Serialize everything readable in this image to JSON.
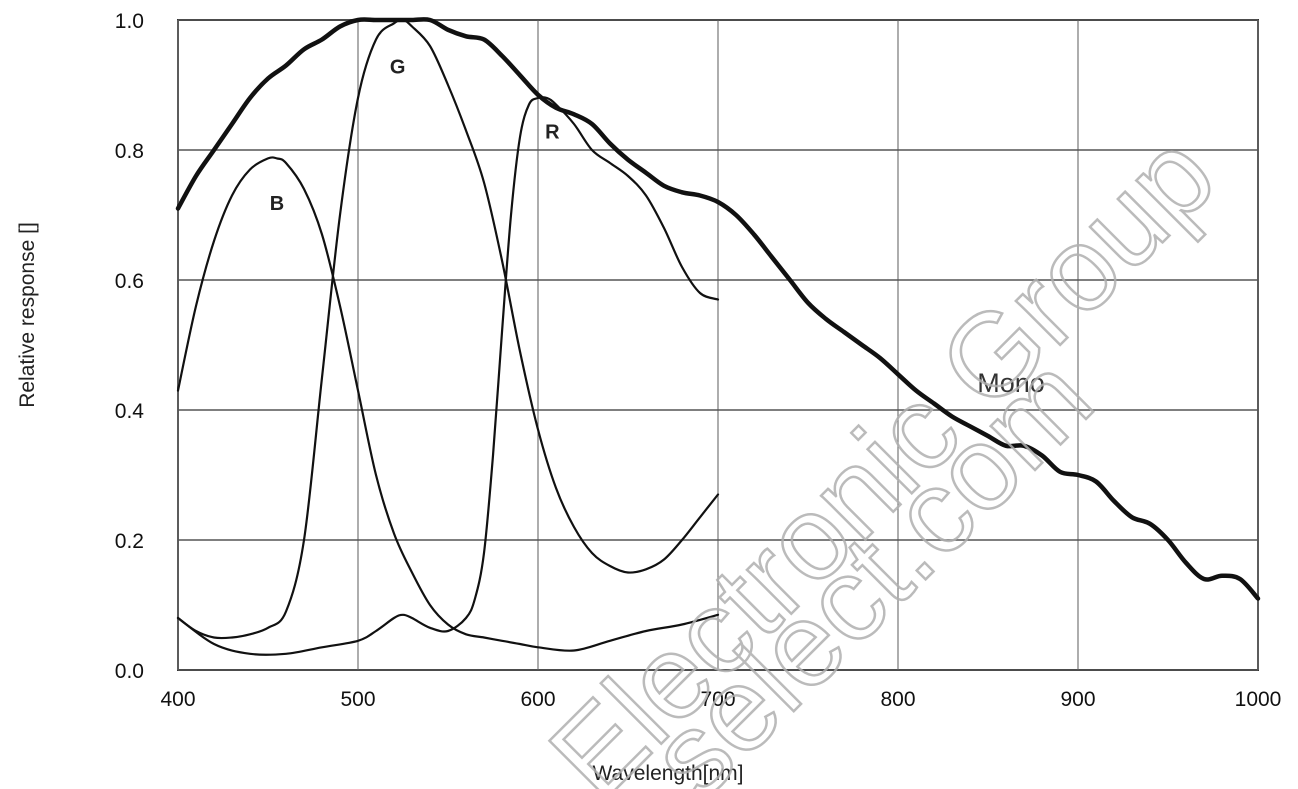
{
  "chart_data": {
    "type": "line",
    "xlabel": "Wavelength[nm]",
    "ylabel": "Relative response []",
    "xlim": [
      400,
      1000
    ],
    "ylim": [
      0.0,
      1.0
    ],
    "x_ticks": [
      "400",
      "500",
      "600",
      "700",
      "800",
      "900",
      "1000"
    ],
    "y_ticks": [
      "0.0",
      "0.2",
      "0.4",
      "0.6",
      "0.8",
      "1.0"
    ],
    "grid": true,
    "legend": "none",
    "series": [
      {
        "name": "Mono",
        "label_at": [
          860,
          0.44
        ],
        "x": [
          400,
          410,
          420,
          430,
          440,
          450,
          460,
          470,
          480,
          490,
          500,
          510,
          520,
          530,
          540,
          550,
          560,
          570,
          580,
          590,
          600,
          610,
          620,
          630,
          640,
          650,
          660,
          670,
          680,
          690,
          700,
          710,
          720,
          730,
          740,
          750,
          760,
          770,
          780,
          790,
          800,
          810,
          820,
          830,
          840,
          850,
          860,
          870,
          880,
          890,
          900,
          910,
          920,
          930,
          940,
          950,
          960,
          970,
          980,
          990,
          1000
        ],
        "y": [
          0.71,
          0.76,
          0.8,
          0.84,
          0.88,
          0.91,
          0.93,
          0.955,
          0.97,
          0.99,
          1.0,
          1.0,
          1.0,
          1.0,
          1.0,
          0.985,
          0.975,
          0.97,
          0.945,
          0.915,
          0.885,
          0.865,
          0.855,
          0.84,
          0.81,
          0.785,
          0.765,
          0.745,
          0.735,
          0.73,
          0.72,
          0.7,
          0.67,
          0.635,
          0.6,
          0.565,
          0.54,
          0.52,
          0.5,
          0.48,
          0.455,
          0.43,
          0.41,
          0.39,
          0.375,
          0.36,
          0.345,
          0.345,
          0.33,
          0.305,
          0.3,
          0.29,
          0.26,
          0.235,
          0.225,
          0.2,
          0.165,
          0.14,
          0.145,
          0.14,
          0.11
        ]
      },
      {
        "name": "B",
        "label_at": [
          455,
          0.72
        ],
        "x": [
          400,
          410,
          420,
          430,
          440,
          450,
          455,
          460,
          470,
          480,
          490,
          500,
          510,
          520,
          530,
          540,
          550,
          560,
          570,
          580,
          590,
          600,
          620,
          640,
          660,
          680,
          700
        ],
        "y": [
          0.43,
          0.56,
          0.66,
          0.73,
          0.77,
          0.787,
          0.787,
          0.78,
          0.74,
          0.67,
          0.56,
          0.43,
          0.3,
          0.21,
          0.15,
          0.1,
          0.07,
          0.055,
          0.05,
          0.045,
          0.04,
          0.035,
          0.03,
          0.045,
          0.06,
          0.07,
          0.085
        ]
      },
      {
        "name": "G",
        "label_at": [
          522,
          0.93
        ],
        "x": [
          400,
          410,
          420,
          430,
          440,
          450,
          460,
          470,
          480,
          490,
          500,
          510,
          520,
          525,
          530,
          540,
          550,
          560,
          570,
          580,
          590,
          600,
          610,
          620,
          630,
          640,
          650,
          660,
          670,
          680,
          690,
          700
        ],
        "y": [
          0.08,
          0.06,
          0.05,
          0.05,
          0.055,
          0.065,
          0.09,
          0.2,
          0.45,
          0.7,
          0.88,
          0.97,
          0.995,
          1.0,
          0.99,
          0.96,
          0.9,
          0.83,
          0.75,
          0.63,
          0.49,
          0.37,
          0.28,
          0.22,
          0.18,
          0.16,
          0.15,
          0.155,
          0.17,
          0.2,
          0.235,
          0.27
        ]
      },
      {
        "name": "R",
        "label_at": [
          608,
          0.83
        ],
        "x": [
          400,
          420,
          440,
          460,
          480,
          500,
          510,
          520,
          525,
          530,
          540,
          550,
          560,
          565,
          570,
          575,
          580,
          585,
          590,
          595,
          600,
          605,
          610,
          620,
          630,
          640,
          650,
          660,
          670,
          680,
          690,
          700
        ],
        "y": [
          0.08,
          0.04,
          0.025,
          0.025,
          0.035,
          0.045,
          0.06,
          0.08,
          0.085,
          0.08,
          0.065,
          0.06,
          0.08,
          0.11,
          0.18,
          0.33,
          0.52,
          0.7,
          0.82,
          0.87,
          0.88,
          0.88,
          0.87,
          0.84,
          0.8,
          0.78,
          0.76,
          0.73,
          0.68,
          0.62,
          0.58,
          0.57
        ]
      }
    ],
    "watermark": [
      "Electronic Group",
      "select.com"
    ]
  }
}
